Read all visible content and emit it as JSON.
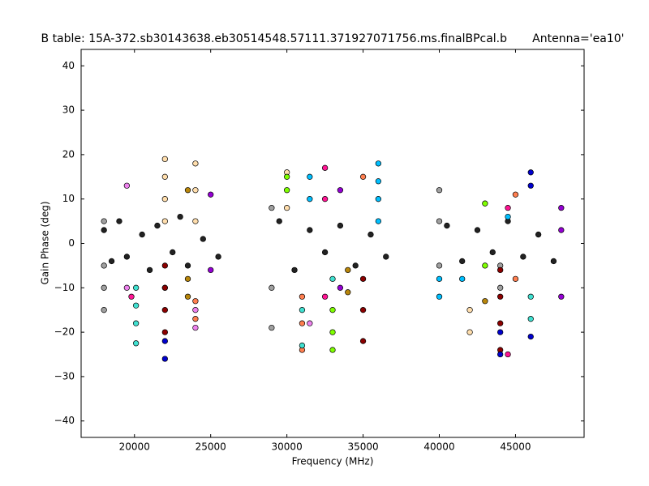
{
  "chart_data": {
    "type": "scatter",
    "title": "B table: 15A-372.sb30143638.eb30514548.57111.371927071756.ms.finalBPcal.b       Antenna='ea10'",
    "x_label": "Frequency (MHz)",
    "y_label": "Gain Phase (deg)",
    "xlim": [
      16500,
      49500
    ],
    "ylim": [
      -43.7,
      43.7
    ],
    "xticks": [
      20000,
      25000,
      30000,
      35000,
      40000,
      45000
    ],
    "yticks": [
      {
        "value": -40,
        "label": "−40"
      },
      {
        "value": -30,
        "label": "−30"
      },
      {
        "value": -20,
        "label": "−20"
      },
      {
        "value": -10,
        "label": "−10"
      },
      0,
      10,
      20,
      30,
      40
    ],
    "series": [
      {
        "color": "#222222",
        "x": [
          18000,
          18500,
          19000,
          19500,
          20500,
          21000,
          21500,
          22500,
          23000,
          23500,
          24500,
          25500,
          29500,
          30500,
          31500,
          32500,
          33500,
          34500,
          35500,
          36500,
          40500,
          41500,
          42500,
          43500,
          44500,
          45500,
          46500,
          47500
        ],
        "y": [
          3,
          -4,
          5,
          -3,
          2,
          -6,
          4,
          -2,
          6,
          -5,
          1,
          -3,
          5,
          -6,
          3,
          -2,
          4,
          -5,
          2,
          -3,
          4,
          -4,
          3,
          -2,
          5,
          -3,
          2,
          -4
        ]
      },
      {
        "color": "#a0a0a0",
        "x": [
          18000,
          18000,
          18000,
          18000,
          29000,
          29000,
          29000,
          40000,
          40000,
          40000,
          44000,
          44000
        ],
        "y": [
          -15,
          -10,
          -5,
          5,
          -19,
          -10,
          8,
          -5,
          5,
          12,
          -10,
          -5
        ]
      },
      {
        "color": "#ffdead",
        "x": [
          22000,
          22000,
          22000,
          22000,
          22000,
          24000,
          24000,
          24000,
          30000,
          30000,
          42000,
          42000
        ],
        "y": [
          19,
          15,
          10,
          5,
          -10,
          18,
          12,
          5,
          16,
          8,
          -20,
          -15
        ]
      },
      {
        "color": "#8b0000",
        "x": [
          22000,
          22000,
          22000,
          22000,
          35000,
          35000,
          35000,
          44000,
          44000,
          44000,
          44000
        ],
        "y": [
          -20,
          -15,
          -10,
          -5,
          -22,
          -15,
          -8,
          -24,
          -18,
          -12,
          -6
        ]
      },
      {
        "color": "#00bfff",
        "x": [
          36000,
          36000,
          36000,
          36000,
          41500,
          44500,
          31500,
          31500,
          40000,
          40000
        ],
        "y": [
          18,
          14,
          10,
          5,
          -8,
          6,
          15,
          10,
          -12,
          -8
        ]
      },
      {
        "color": "#ff7f50",
        "x": [
          24000,
          24000,
          31000,
          31000,
          31000,
          45000,
          45000,
          35000
        ],
        "y": [
          -17,
          -13,
          -24,
          -18,
          -12,
          -8,
          11,
          15
        ]
      },
      {
        "color": "#9400d3",
        "x": [
          48000,
          48000,
          48000,
          25000,
          25000,
          33500,
          33500
        ],
        "y": [
          -12,
          8,
          3,
          11,
          -6,
          12,
          -10
        ]
      },
      {
        "color": "#7fff00",
        "x": [
          33000,
          33000,
          33000,
          30000,
          30000,
          43000,
          43000
        ],
        "y": [
          -24,
          -20,
          -15,
          15,
          12,
          9,
          -5
        ]
      },
      {
        "color": "#ff1493",
        "x": [
          32500,
          32500,
          32500,
          44500,
          44500,
          19800
        ],
        "y": [
          17,
          10,
          -12,
          -25,
          8,
          -12
        ]
      },
      {
        "color": "#40e0d0",
        "x": [
          20100,
          20100,
          20100,
          20100,
          31000,
          31000,
          33000,
          46000,
          46000
        ],
        "y": [
          -22.5,
          -18,
          -14,
          -10,
          -23,
          -15,
          -8,
          -17,
          -12
        ]
      },
      {
        "color": "#0000cd",
        "x": [
          22000,
          22000,
          44000,
          44000,
          46000,
          46000,
          46000
        ],
        "y": [
          -26,
          -22,
          -25,
          -20,
          16,
          13,
          -21
        ]
      },
      {
        "color": "#b8860b",
        "x": [
          23500,
          23500,
          23500,
          34000,
          34000,
          43000
        ],
        "y": [
          12,
          -12,
          -8,
          -11,
          -6,
          -13
        ]
      },
      {
        "color": "#ee82ee",
        "x": [
          19500,
          19500,
          24000,
          24000,
          31500
        ],
        "y": [
          13,
          -10,
          -19,
          -15,
          -18
        ]
      }
    ]
  }
}
